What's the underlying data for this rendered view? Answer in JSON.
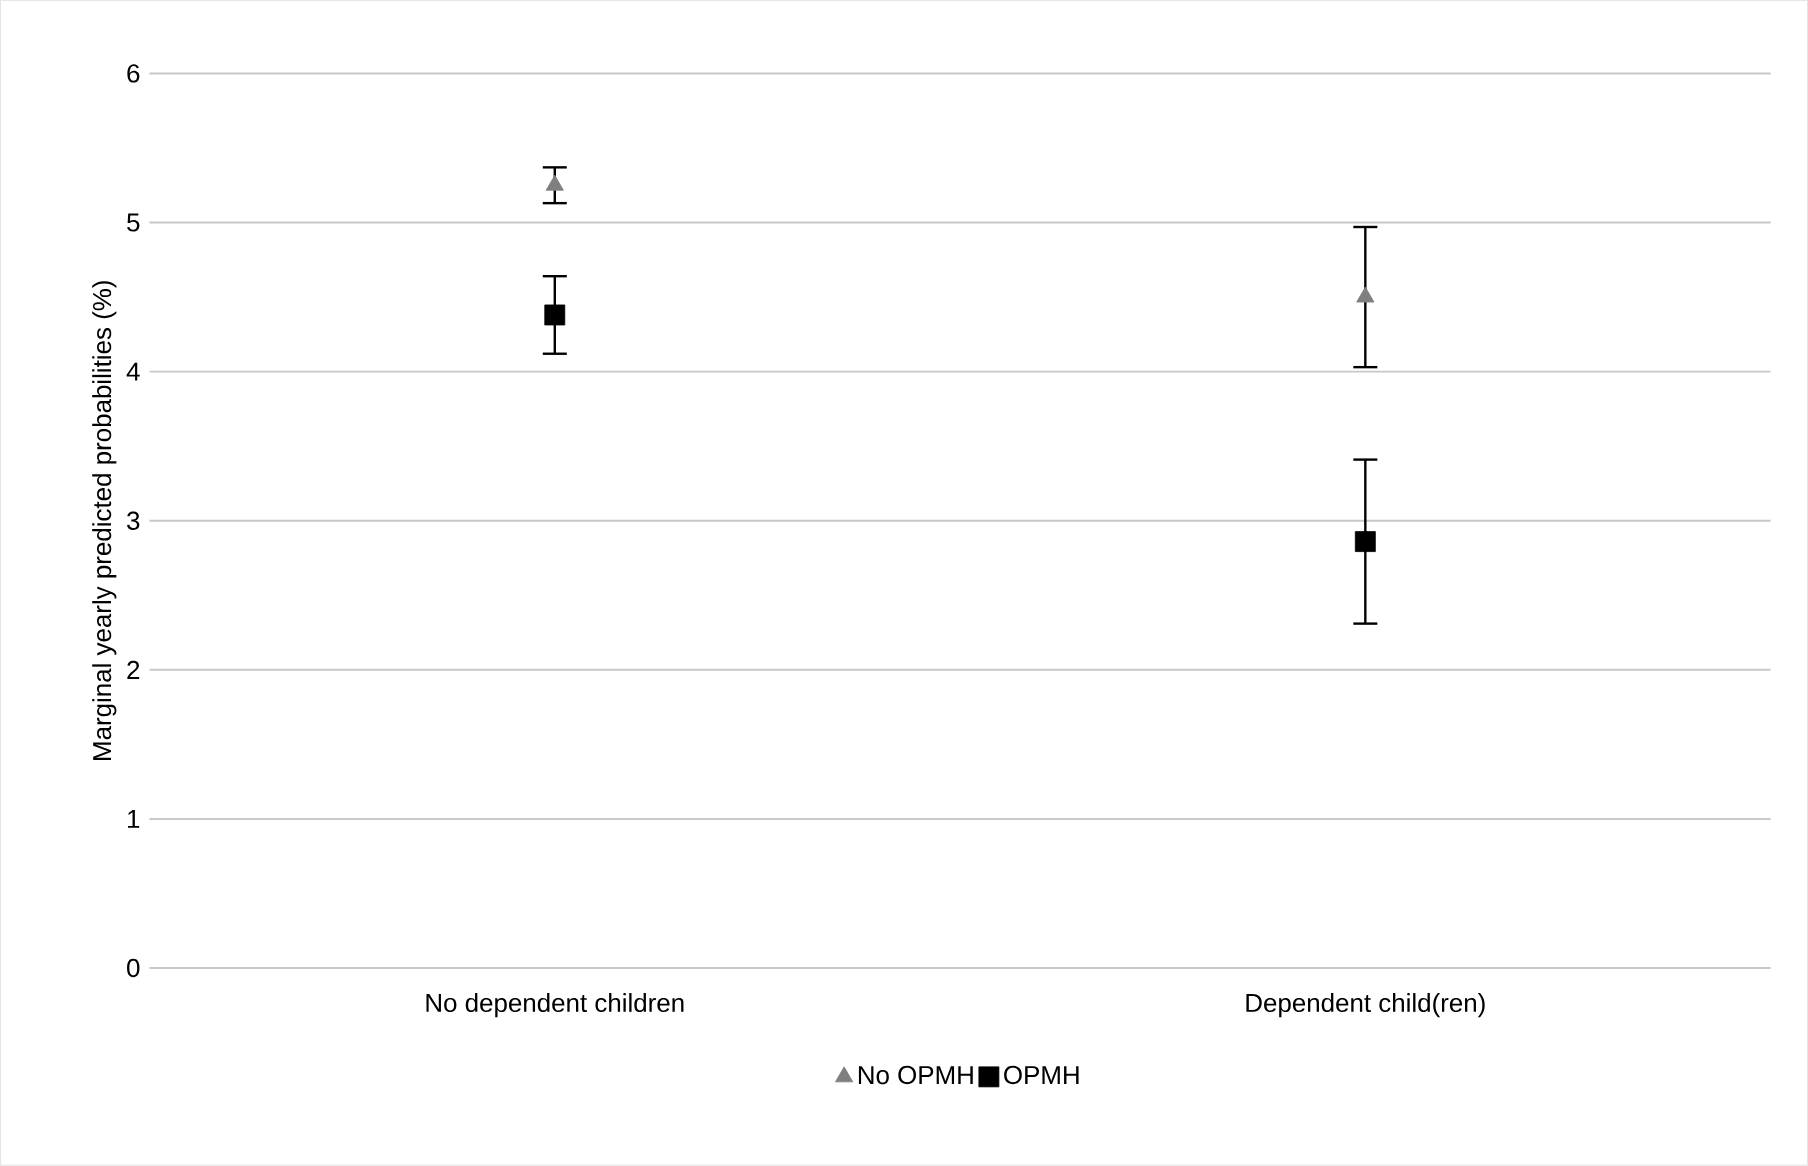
{
  "chart_data": {
    "type": "scatter",
    "ylabel": "Marginal yearly predicted probabilities (%)",
    "categories": [
      "No dependent children",
      "Dependent child(ren)"
    ],
    "series": [
      {
        "name": "No OPMH",
        "color": "#7f7f7f",
        "marker": "triangle",
        "values": [
          5.25,
          4.5
        ],
        "errors": [
          0.12,
          0.47
        ]
      },
      {
        "name": "OPMH",
        "color": "#000000",
        "marker": "square",
        "values": [
          4.38,
          2.86
        ],
        "errors": [
          0.26,
          0.55
        ]
      }
    ],
    "ylim": [
      0,
      6
    ],
    "yticks": [
      0,
      1,
      2,
      3,
      4,
      5,
      6
    ],
    "grid": "y",
    "legend": "bottom"
  }
}
